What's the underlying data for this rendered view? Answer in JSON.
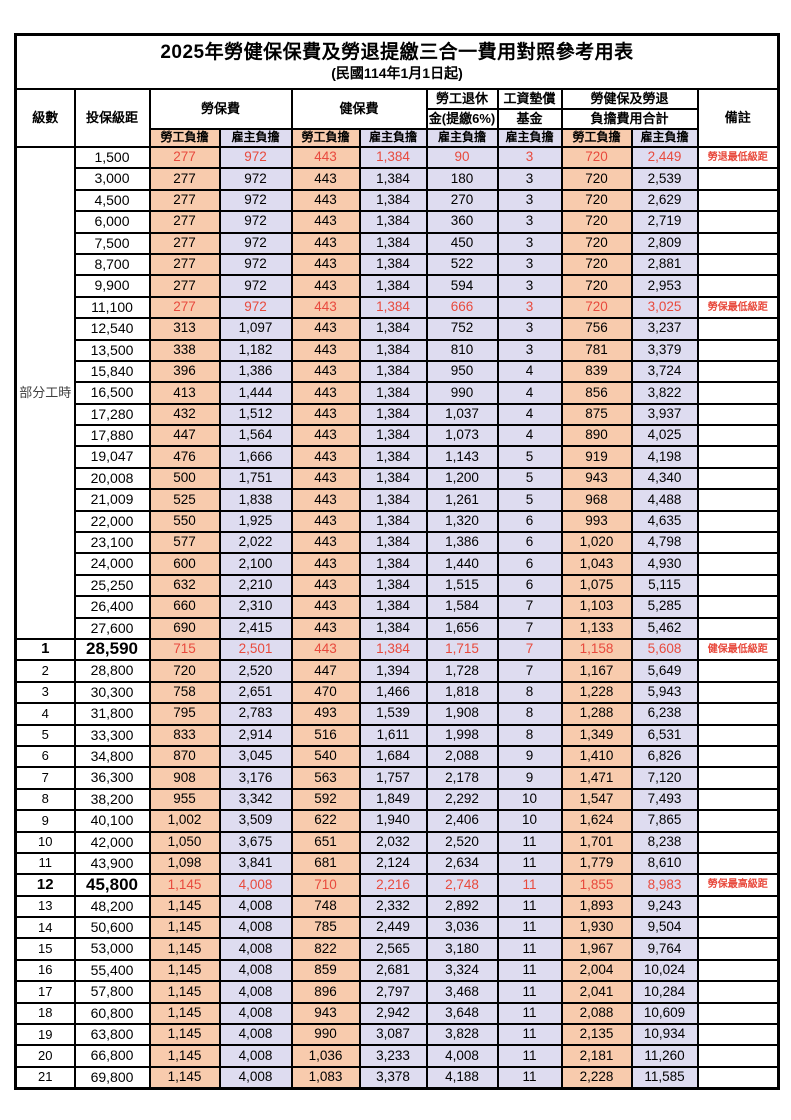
{
  "title": "2025年勞健保保費及勞退提繳三合一費用對照參考用表",
  "subtitle": "(民國114年1月1日起)",
  "colors": {
    "employee_bg": "#f8cbad",
    "employer_bg": "#dedcf0",
    "highlight_text": "#e84a3d",
    "border": "#000000"
  },
  "header": {
    "level": "級數",
    "bracket": "投保級距",
    "labor_group": "勞保費",
    "health_group": "健保費",
    "pension_line1": "勞工退休",
    "pension_line2": "金(提繳6%)",
    "fund_line1": "工資墊償",
    "fund_line2": "基金",
    "total_line1": "勞健保及勞退",
    "total_line2": "負擔費用合計",
    "remark": "備註",
    "employee": "勞工負擔",
    "employer": "雇主負擔"
  },
  "part_time_label": "部分工時",
  "part_time_rowspan": 23,
  "rows": [
    {
      "level": "",
      "bracket": "1,500",
      "labor_emp": "277",
      "labor_er": "972",
      "health_emp": "443",
      "health_er": "1,384",
      "pension_er": "90",
      "fund_er": "3",
      "total_emp": "720",
      "total_er": "2,449",
      "remark": "勞退最低級距",
      "highlight": true,
      "bold": false
    },
    {
      "level": "",
      "bracket": "3,000",
      "labor_emp": "277",
      "labor_er": "972",
      "health_emp": "443",
      "health_er": "1,384",
      "pension_er": "180",
      "fund_er": "3",
      "total_emp": "720",
      "total_er": "2,539",
      "remark": "",
      "highlight": false,
      "bold": false
    },
    {
      "level": "",
      "bracket": "4,500",
      "labor_emp": "277",
      "labor_er": "972",
      "health_emp": "443",
      "health_er": "1,384",
      "pension_er": "270",
      "fund_er": "3",
      "total_emp": "720",
      "total_er": "2,629",
      "remark": "",
      "highlight": false,
      "bold": false
    },
    {
      "level": "",
      "bracket": "6,000",
      "labor_emp": "277",
      "labor_er": "972",
      "health_emp": "443",
      "health_er": "1,384",
      "pension_er": "360",
      "fund_er": "3",
      "total_emp": "720",
      "total_er": "2,719",
      "remark": "",
      "highlight": false,
      "bold": false
    },
    {
      "level": "",
      "bracket": "7,500",
      "labor_emp": "277",
      "labor_er": "972",
      "health_emp": "443",
      "health_er": "1,384",
      "pension_er": "450",
      "fund_er": "3",
      "total_emp": "720",
      "total_er": "2,809",
      "remark": "",
      "highlight": false,
      "bold": false
    },
    {
      "level": "",
      "bracket": "8,700",
      "labor_emp": "277",
      "labor_er": "972",
      "health_emp": "443",
      "health_er": "1,384",
      "pension_er": "522",
      "fund_er": "3",
      "total_emp": "720",
      "total_er": "2,881",
      "remark": "",
      "highlight": false,
      "bold": false
    },
    {
      "level": "",
      "bracket": "9,900",
      "labor_emp": "277",
      "labor_er": "972",
      "health_emp": "443",
      "health_er": "1,384",
      "pension_er": "594",
      "fund_er": "3",
      "total_emp": "720",
      "total_er": "2,953",
      "remark": "",
      "highlight": false,
      "bold": false
    },
    {
      "level": "",
      "bracket": "11,100",
      "labor_emp": "277",
      "labor_er": "972",
      "health_emp": "443",
      "health_er": "1,384",
      "pension_er": "666",
      "fund_er": "3",
      "total_emp": "720",
      "total_er": "3,025",
      "remark": "勞保最低級距",
      "highlight": true,
      "bold": false
    },
    {
      "level": "",
      "bracket": "12,540",
      "labor_emp": "313",
      "labor_er": "1,097",
      "health_emp": "443",
      "health_er": "1,384",
      "pension_er": "752",
      "fund_er": "3",
      "total_emp": "756",
      "total_er": "3,237",
      "remark": "",
      "highlight": false,
      "bold": false
    },
    {
      "level": "",
      "bracket": "13,500",
      "labor_emp": "338",
      "labor_er": "1,182",
      "health_emp": "443",
      "health_er": "1,384",
      "pension_er": "810",
      "fund_er": "3",
      "total_emp": "781",
      "total_er": "3,379",
      "remark": "",
      "highlight": false,
      "bold": false
    },
    {
      "level": "",
      "bracket": "15,840",
      "labor_emp": "396",
      "labor_er": "1,386",
      "health_emp": "443",
      "health_er": "1,384",
      "pension_er": "950",
      "fund_er": "4",
      "total_emp": "839",
      "total_er": "3,724",
      "remark": "",
      "highlight": false,
      "bold": false
    },
    {
      "level": "",
      "bracket": "16,500",
      "labor_emp": "413",
      "labor_er": "1,444",
      "health_emp": "443",
      "health_er": "1,384",
      "pension_er": "990",
      "fund_er": "4",
      "total_emp": "856",
      "total_er": "3,822",
      "remark": "",
      "highlight": false,
      "bold": false
    },
    {
      "level": "",
      "bracket": "17,280",
      "labor_emp": "432",
      "labor_er": "1,512",
      "health_emp": "443",
      "health_er": "1,384",
      "pension_er": "1,037",
      "fund_er": "4",
      "total_emp": "875",
      "total_er": "3,937",
      "remark": "",
      "highlight": false,
      "bold": false
    },
    {
      "level": "",
      "bracket": "17,880",
      "labor_emp": "447",
      "labor_er": "1,564",
      "health_emp": "443",
      "health_er": "1,384",
      "pension_er": "1,073",
      "fund_er": "4",
      "total_emp": "890",
      "total_er": "4,025",
      "remark": "",
      "highlight": false,
      "bold": false
    },
    {
      "level": "",
      "bracket": "19,047",
      "labor_emp": "476",
      "labor_er": "1,666",
      "health_emp": "443",
      "health_er": "1,384",
      "pension_er": "1,143",
      "fund_er": "5",
      "total_emp": "919",
      "total_er": "4,198",
      "remark": "",
      "highlight": false,
      "bold": false
    },
    {
      "level": "",
      "bracket": "20,008",
      "labor_emp": "500",
      "labor_er": "1,751",
      "health_emp": "443",
      "health_er": "1,384",
      "pension_er": "1,200",
      "fund_er": "5",
      "total_emp": "943",
      "total_er": "4,340",
      "remark": "",
      "highlight": false,
      "bold": false
    },
    {
      "level": "",
      "bracket": "21,009",
      "labor_emp": "525",
      "labor_er": "1,838",
      "health_emp": "443",
      "health_er": "1,384",
      "pension_er": "1,261",
      "fund_er": "5",
      "total_emp": "968",
      "total_er": "4,488",
      "remark": "",
      "highlight": false,
      "bold": false
    },
    {
      "level": "",
      "bracket": "22,000",
      "labor_emp": "550",
      "labor_er": "1,925",
      "health_emp": "443",
      "health_er": "1,384",
      "pension_er": "1,320",
      "fund_er": "6",
      "total_emp": "993",
      "total_er": "4,635",
      "remark": "",
      "highlight": false,
      "bold": false
    },
    {
      "level": "",
      "bracket": "23,100",
      "labor_emp": "577",
      "labor_er": "2,022",
      "health_emp": "443",
      "health_er": "1,384",
      "pension_er": "1,386",
      "fund_er": "6",
      "total_emp": "1,020",
      "total_er": "4,798",
      "remark": "",
      "highlight": false,
      "bold": false
    },
    {
      "level": "",
      "bracket": "24,000",
      "labor_emp": "600",
      "labor_er": "2,100",
      "health_emp": "443",
      "health_er": "1,384",
      "pension_er": "1,440",
      "fund_er": "6",
      "total_emp": "1,043",
      "total_er": "4,930",
      "remark": "",
      "highlight": false,
      "bold": false
    },
    {
      "level": "",
      "bracket": "25,250",
      "labor_emp": "632",
      "labor_er": "2,210",
      "health_emp": "443",
      "health_er": "1,384",
      "pension_er": "1,515",
      "fund_er": "6",
      "total_emp": "1,075",
      "total_er": "5,115",
      "remark": "",
      "highlight": false,
      "bold": false
    },
    {
      "level": "",
      "bracket": "26,400",
      "labor_emp": "660",
      "labor_er": "2,310",
      "health_emp": "443",
      "health_er": "1,384",
      "pension_er": "1,584",
      "fund_er": "7",
      "total_emp": "1,103",
      "total_er": "5,285",
      "remark": "",
      "highlight": false,
      "bold": false
    },
    {
      "level": "",
      "bracket": "27,600",
      "labor_emp": "690",
      "labor_er": "2,415",
      "health_emp": "443",
      "health_er": "1,384",
      "pension_er": "1,656",
      "fund_er": "7",
      "total_emp": "1,133",
      "total_er": "5,462",
      "remark": "",
      "highlight": false,
      "bold": false
    },
    {
      "level": "1",
      "bracket": "28,590",
      "labor_emp": "715",
      "labor_er": "2,501",
      "health_emp": "443",
      "health_er": "1,384",
      "pension_er": "1,715",
      "fund_er": "7",
      "total_emp": "1,158",
      "total_er": "5,608",
      "remark": "健保最低級距",
      "highlight": true,
      "bold": true
    },
    {
      "level": "2",
      "bracket": "28,800",
      "labor_emp": "720",
      "labor_er": "2,520",
      "health_emp": "447",
      "health_er": "1,394",
      "pension_er": "1,728",
      "fund_er": "7",
      "total_emp": "1,167",
      "total_er": "5,649",
      "remark": "",
      "highlight": false,
      "bold": false
    },
    {
      "level": "3",
      "bracket": "30,300",
      "labor_emp": "758",
      "labor_er": "2,651",
      "health_emp": "470",
      "health_er": "1,466",
      "pension_er": "1,818",
      "fund_er": "8",
      "total_emp": "1,228",
      "total_er": "5,943",
      "remark": "",
      "highlight": false,
      "bold": false
    },
    {
      "level": "4",
      "bracket": "31,800",
      "labor_emp": "795",
      "labor_er": "2,783",
      "health_emp": "493",
      "health_er": "1,539",
      "pension_er": "1,908",
      "fund_er": "8",
      "total_emp": "1,288",
      "total_er": "6,238",
      "remark": "",
      "highlight": false,
      "bold": false
    },
    {
      "level": "5",
      "bracket": "33,300",
      "labor_emp": "833",
      "labor_er": "2,914",
      "health_emp": "516",
      "health_er": "1,611",
      "pension_er": "1,998",
      "fund_er": "8",
      "total_emp": "1,349",
      "total_er": "6,531",
      "remark": "",
      "highlight": false,
      "bold": false
    },
    {
      "level": "6",
      "bracket": "34,800",
      "labor_emp": "870",
      "labor_er": "3,045",
      "health_emp": "540",
      "health_er": "1,684",
      "pension_er": "2,088",
      "fund_er": "9",
      "total_emp": "1,410",
      "total_er": "6,826",
      "remark": "",
      "highlight": false,
      "bold": false
    },
    {
      "level": "7",
      "bracket": "36,300",
      "labor_emp": "908",
      "labor_er": "3,176",
      "health_emp": "563",
      "health_er": "1,757",
      "pension_er": "2,178",
      "fund_er": "9",
      "total_emp": "1,471",
      "total_er": "7,120",
      "remark": "",
      "highlight": false,
      "bold": false
    },
    {
      "level": "8",
      "bracket": "38,200",
      "labor_emp": "955",
      "labor_er": "3,342",
      "health_emp": "592",
      "health_er": "1,849",
      "pension_er": "2,292",
      "fund_er": "10",
      "total_emp": "1,547",
      "total_er": "7,493",
      "remark": "",
      "highlight": false,
      "bold": false
    },
    {
      "level": "9",
      "bracket": "40,100",
      "labor_emp": "1,002",
      "labor_er": "3,509",
      "health_emp": "622",
      "health_er": "1,940",
      "pension_er": "2,406",
      "fund_er": "10",
      "total_emp": "1,624",
      "total_er": "7,865",
      "remark": "",
      "highlight": false,
      "bold": false
    },
    {
      "level": "10",
      "bracket": "42,000",
      "labor_emp": "1,050",
      "labor_er": "3,675",
      "health_emp": "651",
      "health_er": "2,032",
      "pension_er": "2,520",
      "fund_er": "11",
      "total_emp": "1,701",
      "total_er": "8,238",
      "remark": "",
      "highlight": false,
      "bold": false
    },
    {
      "level": "11",
      "bracket": "43,900",
      "labor_emp": "1,098",
      "labor_er": "3,841",
      "health_emp": "681",
      "health_er": "2,124",
      "pension_er": "2,634",
      "fund_er": "11",
      "total_emp": "1,779",
      "total_er": "8,610",
      "remark": "",
      "highlight": false,
      "bold": false
    },
    {
      "level": "12",
      "bracket": "45,800",
      "labor_emp": "1,145",
      "labor_er": "4,008",
      "health_emp": "710",
      "health_er": "2,216",
      "pension_er": "2,748",
      "fund_er": "11",
      "total_emp": "1,855",
      "total_er": "8,983",
      "remark": "勞保最高級距",
      "highlight": true,
      "bold": true
    },
    {
      "level": "13",
      "bracket": "48,200",
      "labor_emp": "1,145",
      "labor_er": "4,008",
      "health_emp": "748",
      "health_er": "2,332",
      "pension_er": "2,892",
      "fund_er": "11",
      "total_emp": "1,893",
      "total_er": "9,243",
      "remark": "",
      "highlight": false,
      "bold": false
    },
    {
      "level": "14",
      "bracket": "50,600",
      "labor_emp": "1,145",
      "labor_er": "4,008",
      "health_emp": "785",
      "health_er": "2,449",
      "pension_er": "3,036",
      "fund_er": "11",
      "total_emp": "1,930",
      "total_er": "9,504",
      "remark": "",
      "highlight": false,
      "bold": false
    },
    {
      "level": "15",
      "bracket": "53,000",
      "labor_emp": "1,145",
      "labor_er": "4,008",
      "health_emp": "822",
      "health_er": "2,565",
      "pension_er": "3,180",
      "fund_er": "11",
      "total_emp": "1,967",
      "total_er": "9,764",
      "remark": "",
      "highlight": false,
      "bold": false
    },
    {
      "level": "16",
      "bracket": "55,400",
      "labor_emp": "1,145",
      "labor_er": "4,008",
      "health_emp": "859",
      "health_er": "2,681",
      "pension_er": "3,324",
      "fund_er": "11",
      "total_emp": "2,004",
      "total_er": "10,024",
      "remark": "",
      "highlight": false,
      "bold": false
    },
    {
      "level": "17",
      "bracket": "57,800",
      "labor_emp": "1,145",
      "labor_er": "4,008",
      "health_emp": "896",
      "health_er": "2,797",
      "pension_er": "3,468",
      "fund_er": "11",
      "total_emp": "2,041",
      "total_er": "10,284",
      "remark": "",
      "highlight": false,
      "bold": false
    },
    {
      "level": "18",
      "bracket": "60,800",
      "labor_emp": "1,145",
      "labor_er": "4,008",
      "health_emp": "943",
      "health_er": "2,942",
      "pension_er": "3,648",
      "fund_er": "11",
      "total_emp": "2,088",
      "total_er": "10,609",
      "remark": "",
      "highlight": false,
      "bold": false
    },
    {
      "level": "19",
      "bracket": "63,800",
      "labor_emp": "1,145",
      "labor_er": "4,008",
      "health_emp": "990",
      "health_er": "3,087",
      "pension_er": "3,828",
      "fund_er": "11",
      "total_emp": "2,135",
      "total_er": "10,934",
      "remark": "",
      "highlight": false,
      "bold": false
    },
    {
      "level": "20",
      "bracket": "66,800",
      "labor_emp": "1,145",
      "labor_er": "4,008",
      "health_emp": "1,036",
      "health_er": "3,233",
      "pension_er": "4,008",
      "fund_er": "11",
      "total_emp": "2,181",
      "total_er": "11,260",
      "remark": "",
      "highlight": false,
      "bold": false
    },
    {
      "level": "21",
      "bracket": "69,800",
      "labor_emp": "1,145",
      "labor_er": "4,008",
      "health_emp": "1,083",
      "health_er": "3,378",
      "pension_er": "4,188",
      "fund_er": "11",
      "total_emp": "2,228",
      "total_er": "11,585",
      "remark": "",
      "highlight": false,
      "bold": false
    }
  ]
}
